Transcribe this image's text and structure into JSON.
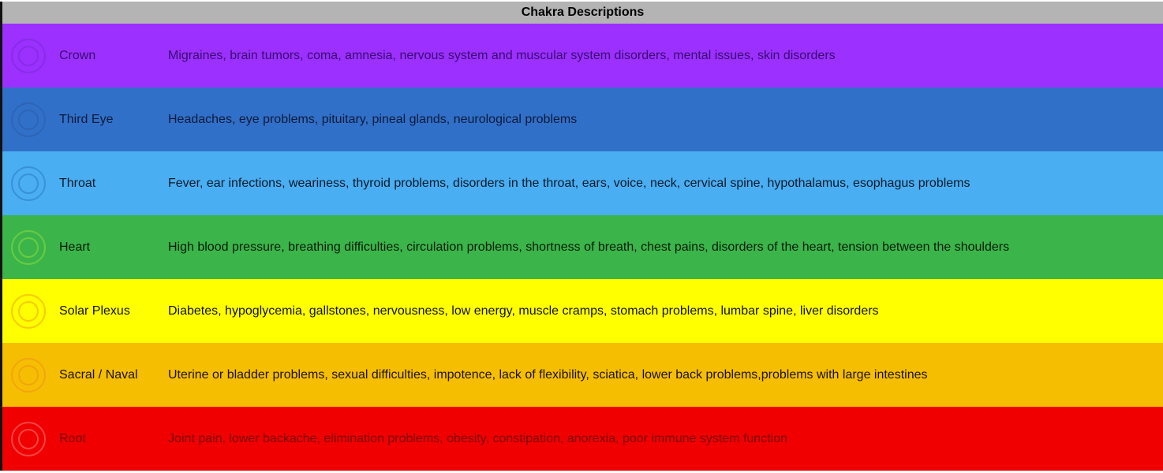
{
  "title": "Chakra Descriptions",
  "rows": [
    {
      "name": "Crown",
      "description": "Migraines, brain tumors, coma, amnesia, nervous system and muscular system disorders, mental issues, skin disorders",
      "bg": "#9b30ff",
      "text": "#3a0b70",
      "icon_color": "#7a2ad0",
      "icon": "crown-chakra-icon"
    },
    {
      "name": "Third Eye",
      "description": "Headaches, eye problems, pituitary, pineal glands, neurological problems",
      "bg": "#3170c8",
      "text": "#0c1a3a",
      "icon_color": "#2a5ca8",
      "icon": "third-eye-chakra-icon"
    },
    {
      "name": "Throat",
      "description": "Fever, ear infections, weariness, thyroid problems, disorders in the throat, ears, voice, neck, cervical spine, hypothalamus, esophagus problems",
      "bg": "#4aaef2",
      "text": "#0a1a2a",
      "icon_color": "#2a78c8",
      "icon": "throat-chakra-icon"
    },
    {
      "name": "Heart",
      "description": "High blood pressure, breathing difficulties, circulation problems, shortness of breath, chest pains, disorders of the heart, tension between the shoulders",
      "bg": "#3bb54a",
      "text": "#061a08",
      "icon_color": "#8ee03a",
      "icon": "heart-chakra-icon"
    },
    {
      "name": "Solar Plexus",
      "description": "Diabetes, hypoglycemia, gallstones, nervousness, low energy, muscle cramps, stomach problems, lumbar spine, liver disorders",
      "bg": "#ffff00",
      "text": "#111100",
      "icon_color": "#f0a000",
      "icon": "solar-plexus-chakra-icon"
    },
    {
      "name": "Sacral / Naval",
      "description": "Uterine or bladder problems, sexual difficulties, impotence, lack of flexibility, sciatica, lower back problems,problems with large intestines",
      "bg": "#f6be00",
      "text": "#1a1200",
      "icon_color": "#f09020",
      "icon": "sacral-chakra-icon"
    },
    {
      "name": "Root",
      "description": "Joint pain, lower backache, elimination problems, obesity, constipation, anorexia, poor immune system function",
      "bg": "#f00000",
      "text": "#7a0000",
      "icon_color": "#ff8080",
      "icon": "root-chakra-icon"
    }
  ]
}
